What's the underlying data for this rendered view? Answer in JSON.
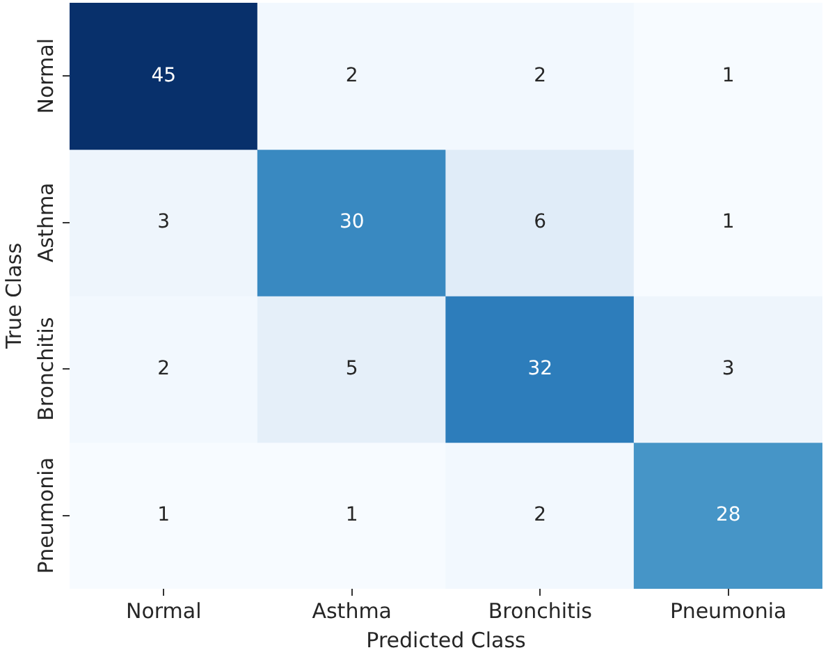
{
  "chart_data": {
    "type": "heatmap",
    "xlabel": "Predicted Class",
    "ylabel": "True Class",
    "categories": [
      "Normal",
      "Asthma",
      "Bronchitis",
      "Pneumonia"
    ],
    "y_categories": [
      "Normal",
      "Asthma",
      "Bronchitis",
      "Pneumonia"
    ],
    "cells": [
      [
        45,
        2,
        2,
        1
      ],
      [
        3,
        30,
        6,
        1
      ],
      [
        2,
        5,
        32,
        3
      ],
      [
        1,
        1,
        2,
        28
      ]
    ],
    "data_labels": true
  }
}
